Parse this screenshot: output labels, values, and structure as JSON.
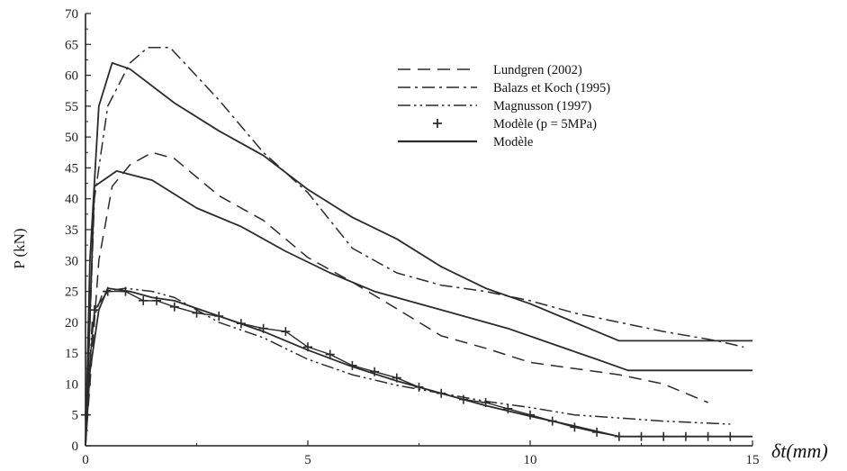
{
  "chart_data": {
    "type": "line",
    "xlabel": "δt(mm)",
    "ylabel": "P (kN)",
    "xlim": [
      0,
      15
    ],
    "ylim": [
      0,
      70
    ],
    "x_ticks": [
      0,
      5,
      10,
      15
    ],
    "y_ticks": [
      0,
      5,
      10,
      15,
      20,
      25,
      30,
      35,
      40,
      45,
      50,
      55,
      60,
      65,
      70
    ],
    "grid": false,
    "legend_position": "top-right",
    "series": [
      {
        "name": "Lundgren (2002)",
        "style": "dashed",
        "points": [
          [
            0,
            0
          ],
          [
            0.3,
            30
          ],
          [
            0.6,
            42
          ],
          [
            1,
            45.5
          ],
          [
            1.5,
            47.5
          ],
          [
            2,
            46.5
          ],
          [
            3,
            40.5
          ],
          [
            4,
            36.5
          ],
          [
            5,
            30.5
          ],
          [
            6,
            26.5
          ],
          [
            7,
            22.2
          ],
          [
            8,
            17.8
          ],
          [
            9,
            15.8
          ],
          [
            10,
            13.5
          ],
          [
            11,
            12.5
          ],
          [
            12,
            11.5
          ],
          [
            13,
            10
          ],
          [
            14,
            7
          ]
        ]
      },
      {
        "name": "Balazs et Koch (1995)",
        "style": "dashdot",
        "points": [
          [
            0,
            0
          ],
          [
            0.2,
            40
          ],
          [
            0.5,
            55
          ],
          [
            1,
            62
          ],
          [
            1.4,
            64.5
          ],
          [
            1.9,
            64.5
          ],
          [
            3,
            56
          ],
          [
            4,
            47.5
          ],
          [
            5,
            41
          ],
          [
            6,
            32
          ],
          [
            7,
            28
          ],
          [
            8,
            26
          ],
          [
            9,
            25
          ],
          [
            10,
            23.5
          ],
          [
            11,
            21.5
          ],
          [
            12,
            20
          ],
          [
            13,
            18.5
          ],
          [
            14.2,
            17
          ],
          [
            14.8,
            16
          ]
        ]
      },
      {
        "name": "Magnusson (1997)",
        "style": "dashdotdot",
        "points": [
          [
            0,
            0
          ],
          [
            0.15,
            20
          ],
          [
            0.4,
            25
          ],
          [
            0.9,
            25.5
          ],
          [
            1.5,
            25
          ],
          [
            2,
            24
          ],
          [
            3,
            20
          ],
          [
            4,
            17.5
          ],
          [
            5,
            14
          ],
          [
            6,
            11.5
          ],
          [
            7,
            9.8
          ],
          [
            8,
            8.5
          ],
          [
            9,
            7.2
          ],
          [
            10,
            6.2
          ],
          [
            11,
            5
          ],
          [
            12,
            4.5
          ],
          [
            13,
            4
          ],
          [
            14.5,
            3.5
          ]
        ]
      },
      {
        "name": "Modèle (p = 5MPa)",
        "style": "plus",
        "points": [
          [
            0,
            5
          ],
          [
            0.2,
            22
          ],
          [
            0.5,
            25
          ],
          [
            0.9,
            25
          ],
          [
            1.3,
            23.5
          ],
          [
            1.6,
            23.5
          ],
          [
            2,
            22.5
          ],
          [
            2.5,
            21.5
          ],
          [
            3,
            21
          ],
          [
            3.5,
            19.8
          ],
          [
            4,
            19
          ],
          [
            4.5,
            18.5
          ],
          [
            5,
            16
          ],
          [
            5.5,
            14.8
          ],
          [
            6,
            13
          ],
          [
            6.5,
            12
          ],
          [
            7,
            11
          ],
          [
            7.5,
            9.5
          ],
          [
            8,
            8.5
          ],
          [
            8.5,
            7.5
          ],
          [
            9,
            7
          ],
          [
            9.5,
            6
          ],
          [
            10,
            5
          ],
          [
            10.5,
            4
          ],
          [
            11,
            3
          ],
          [
            11.5,
            2.2
          ],
          [
            12,
            1.5
          ],
          [
            12.5,
            1.5
          ],
          [
            13,
            1.5
          ],
          [
            13.5,
            1.5
          ],
          [
            14,
            1.5
          ],
          [
            14.5,
            1.5
          ]
        ]
      },
      {
        "name": "Modèle",
        "style": "solid",
        "points": [
          [
            0,
            0
          ],
          [
            0.2,
            42
          ],
          [
            0.7,
            44.5
          ],
          [
            1.5,
            43
          ],
          [
            2.5,
            38.5
          ],
          [
            3.5,
            35.5
          ],
          [
            4.5,
            31.5
          ],
          [
            5.5,
            28
          ],
          [
            6.5,
            25
          ],
          [
            7.5,
            23
          ],
          [
            8.5,
            21
          ],
          [
            9.5,
            19
          ],
          [
            10.5,
            16.5
          ],
          [
            11.5,
            14
          ],
          [
            12.2,
            12.2
          ],
          [
            12.7,
            12.2
          ],
          [
            15,
            12.2
          ]
        ]
      },
      {
        "name": "",
        "style": "solid",
        "points": [
          [
            0,
            0
          ],
          [
            0.1,
            30
          ],
          [
            0.3,
            55
          ],
          [
            0.6,
            62
          ],
          [
            1,
            61
          ],
          [
            2,
            55.5
          ],
          [
            3,
            51
          ],
          [
            4,
            47
          ],
          [
            5,
            41.5
          ],
          [
            6,
            37
          ],
          [
            7,
            33.5
          ],
          [
            8,
            29
          ],
          [
            9,
            25.5
          ],
          [
            10,
            23
          ],
          [
            11,
            20
          ],
          [
            12,
            17
          ],
          [
            13,
            17
          ],
          [
            15,
            17
          ]
        ]
      },
      {
        "name": "",
        "style": "solid",
        "points": [
          [
            0,
            0
          ],
          [
            0.1,
            12
          ],
          [
            0.3,
            22
          ],
          [
            0.5,
            25.5
          ],
          [
            1,
            25
          ],
          [
            1.5,
            24
          ],
          [
            2,
            23.5
          ],
          [
            3,
            21
          ],
          [
            4,
            18.5
          ],
          [
            5,
            15.5
          ],
          [
            6,
            12.8
          ],
          [
            7,
            10.5
          ],
          [
            8,
            8.5
          ],
          [
            9,
            6.5
          ],
          [
            10,
            4.8
          ],
          [
            11,
            3.2
          ],
          [
            12,
            1.5
          ],
          [
            13,
            1.5
          ],
          [
            15,
            1.5
          ]
        ]
      }
    ],
    "legend": [
      {
        "label": "Lundgren (2002)",
        "style": "dashed"
      },
      {
        "label": "Balazs et Koch (1995)",
        "style": "dashdot"
      },
      {
        "label": "Magnusson (1997)",
        "style": "dashdotdot"
      },
      {
        "label": "Modèle  (p = 5MPa)",
        "style": "plus"
      },
      {
        "label": "Modèle",
        "style": "solid"
      }
    ]
  },
  "colors": {
    "line": "#2b2b2b",
    "axis": "#222222",
    "background": "#ffffff"
  }
}
